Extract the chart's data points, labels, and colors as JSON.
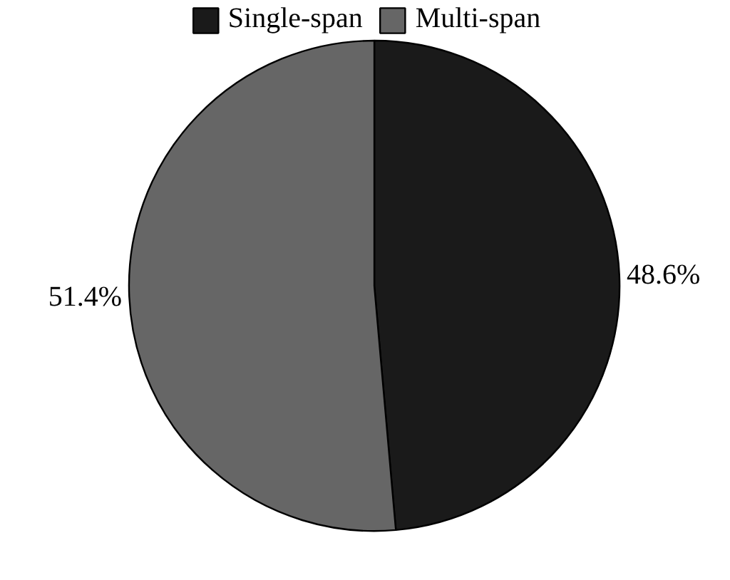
{
  "chart_data": {
    "type": "pie",
    "categories": [
      "Single-span",
      "Multi-span"
    ],
    "values": [
      48.6,
      51.4
    ],
    "colors": [
      "#1a1a1a",
      "#666666"
    ],
    "value_labels": [
      "48.6%",
      "51.4%"
    ],
    "legend": "top"
  }
}
